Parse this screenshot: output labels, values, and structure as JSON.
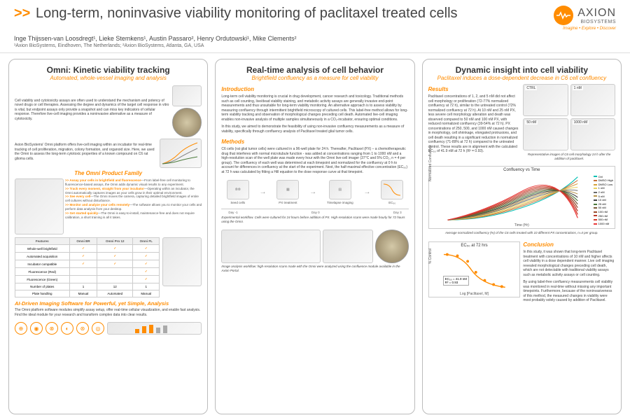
{
  "header": {
    "title": "Long-term, noninvasive viability monitoring of paclitaxel treated cells",
    "authors": "Inge Thijssen-van Loosdregt¹, Lieke Stemkens¹, Austin Passaro², Henry Ordutowski¹, Mike Clements²",
    "affil": "¹Axion BioSystems, Eindhoven, The Netherlands; ²Axion BioSystems, Atlanta, GA, USA",
    "logo_name": "AXION",
    "logo_sub": "BIOSYSTEMS",
    "tagline": "Imagine • Explore • Discover"
  },
  "col1": {
    "title": "Omni: Kinetic viability tracking",
    "sub": "Automated, whole-vessel imaging and analysis",
    "p1": "Cell viability and cytotoxicity assays are often used to understand the mechanism and potency of novel drugs or cell therapies. Assessing the degree and dynamics of the target cell response in vitro is vital, but endpoint assays only provide a snapshot and can miss key indicators of cellular response. Therefore live-cell imaging provides a noninvasive alternative as a measure of cytotoxicity.",
    "p2": "Axion BioSystems' Omni platform offers live-cell imaging within an incubator for real-time tracking of cell proliferation, migration, colony formation, and organoid size. Here, we used the Omni to assess the long-term cytotoxic properties of a known compound on C6 rat glioma cells.",
    "family_h": "The Omni Product Family",
    "features": [
      {
        "h": ">> Assay your cells in brightfield and fluorescence",
        "t": "—From label-free cell monitoring to fluorescence-based assays, the Omni adds dynamic visual results to any experiment."
      },
      {
        "h": ">> Track every moment, straight from your incubator",
        "t": "—Operating within an incubator, the Omni automatically captures images as your cells grow in their optimal environment."
      },
      {
        "h": ">> See every cell",
        "t": "—The Omni moves the camera, capturing detailed brightfield images of entire cell cultures without disturbance."
      },
      {
        "h": ">> Monitor and analyze your cells remotely",
        "t": "—The software allows you to monitor your cells and perform data analysis from your desktop."
      },
      {
        "h": ">> Get started quickly",
        "t": "—The Omni is easy-to-install, maintenance-free and does not require calibration, a short training is all it takes."
      }
    ],
    "table": {
      "cols": [
        "Features",
        "Omni BR",
        "Omni Pro 12",
        "Omni FL"
      ],
      "rows": [
        [
          "Whole-well brightfield",
          "✓",
          "✓",
          "✓"
        ],
        [
          "Automated acquisition",
          "✓",
          "✓",
          "✓"
        ],
        [
          "Incubator compatible",
          "✓",
          "✓",
          "✓"
        ],
        [
          "Fluorescence (Red)",
          "",
          "",
          "✓"
        ],
        [
          "Fluorescence (Green)",
          "",
          "",
          "✓"
        ],
        [
          "Number of plates",
          "1",
          "12",
          "1"
        ],
        [
          "Plate handling",
          "Manual",
          "Automated",
          "Manual"
        ]
      ]
    },
    "ai_title": "AI-Driven Imaging Software for Powerful, yet Simple, Analysis",
    "ai_text": "The Omni platform software modules simplify assay setup, offer real-time cellular visualization, and enable fast analysis. Find the ideal module for your research and transform complex data into clear results."
  },
  "col2": {
    "title": "Real-time analysis of cell behavior",
    "sub": "Brightfield confluency as a measure for cell viability",
    "intro_h": "Introduction",
    "intro1": "Long-term cell viability monitoring is crucial in drug development, cancer research and toxicology. Traditional methods such as cell counting, live/dead viability staining, and metabolic activity assays are generally invasive end-point measurements and thus unsuitable for long-term viability monitoring. An alternative approach is to assess viability by measuring confluency through intermittent brightfield microscopy of cultured cells. This label-free method allows for long-term viability tracking and observation of morphological changes preceding cell death. Automated live-cell imaging enables non-invasive analysis of multiple samples simultaneously in a CO₂-incubator, ensuring optimal conditions.",
    "intro2": "In this study, we aimed to demonstrate the feasibility of using non-invasive confluency measurements as a measure of viability, specifically through confluency analysis of Paclitaxel treated glial tumor cells.",
    "methods_h": "Methods",
    "methods": "C6 cells (rat glial tumor cells) were cultured in a 96-well plate for 24 h. Thereafter, Paclitaxel (PX) – a chemotherapeutic drug that interferes with normal microtubule function - was added at concentrations ranging from 1 to 1000 nM and a high-resolution scan of the well plate was made every hour with the Omni live-cell imager (37°C and 5% CO₂, n = 4 per group). The confluency of each well was determined at each timepoint and normalized for the confluency at 0 h to account for differences in confluency at the start of the experiment. Next, the half-maximal effective concentration (EC₅₀) at 72 h was calculated by fitting a Hill equation to the dose response curve at that timepoint.",
    "wf": {
      "s1": "Seed cells",
      "s2": "PX treatment",
      "s3": "Timelapse imaging",
      "s4": "EC₅₀"
    },
    "tl": {
      "d0": "Day -1",
      "d1": "Day 0",
      "d3": "Day 3"
    },
    "caption1": "Experimental workflow. Cells were cultured for 24 hours before addition of PX. High-resolution scans were made hourly for 72 hours using the Omni.",
    "caption2": "Image analysis workflow: high-resolution scans made with the Omni were analyzed using the confluence module available in the Axion Portal."
  },
  "col3": {
    "title": "Dynamic insight into cell viability",
    "sub": "Paclitaxel induces a dose-dependent decrease in C6 cell confluency",
    "results_h": "Results",
    "results": "Paclitaxel concentrations of 1, 2, and 5 nM did not affect cell morphology or proliferation (72-77% normalized confluency at 72 h), similar to the untreated control (72% normalized confluency at 72 h). At 10 nM and 25 nM PX, less severe cell morphology alteration and death was observed compared to 50 nM and 100 nM PX, with reduced normalized confluency (39-54% at 72 h). PX concentrations of 250, 500, and 1000 nM caused changes in morphology, cell shrinkage, elongated protrusions, and cell death resulting in a significant reduction in normalized confluency (71-89% at 72 h) compared to the untreated control. These results are in alignment with the calculated EC₅₀ of 41.9 nM at 72 h (R² = 0.93).",
    "img_labels": {
      "ctrl": "CTRL",
      "c1": "1 nM",
      "c50": "50 nM",
      "c1000": "1000 nM"
    },
    "img_caption": "Representative images of C6 cell morphology 24 h after the addition of paclitaxel.",
    "chart1": {
      "title": "Confluency vs Time",
      "ylabel": "Normalized Confluence",
      "xlabel": "Time (Hr)",
      "series": [
        {
          "label": "Ctrl",
          "color": "#00bfb3"
        },
        {
          "label": "DMSO High",
          "color": "#c4703a"
        },
        {
          "label": "DMSO Low",
          "color": "#d4a03a"
        },
        {
          "label": "1 nM",
          "color": "#e8d060"
        },
        {
          "label": "2 nM",
          "color": "#6b6b6b"
        },
        {
          "label": "5 nM",
          "color": "#b8954a"
        },
        {
          "label": "10 nM",
          "color": "#444444"
        },
        {
          "label": "25 nM",
          "color": "#4a7a3a"
        },
        {
          "label": "50 nM",
          "color": "#7a5a3a"
        },
        {
          "label": "100 nM",
          "color": "#9a4a2a"
        },
        {
          "label": "250 nM",
          "color": "#b83a2a"
        },
        {
          "label": "500 nM",
          "color": "#d43a2a"
        },
        {
          "label": "1000 nM",
          "color": "#e83a3a"
        }
      ]
    },
    "chart1_caption": "Average normalized confluency (%) of the C6 cells treated with 10 different PX concentrations, n=4 per group.",
    "chart2": {
      "title": "EC₅₀ at 72 hrs",
      "ylabel": "% Control",
      "xlabel": "Log [Paclitaxel, M]",
      "ec50": "EC₅₀ = 41.9 nM",
      "r2": "R² = 0.93"
    },
    "concl_h": "Conclusion",
    "concl1": "In this study, it was shown that long-term Paclitaxel treatment with concentrations of 10 nM and higher affects cell viability in a dose dependent manner. Live cell imaging revealed morphological changes preceding cell death, which are not detectable with traditional viability assays such as metabolic activity assays or cell counting.",
    "concl2": "By using label-free confluency measurements cell viability was monitored in real-time without missing any important timepoints. Furthermore, because of the noninvasiveness of this method, the measured changes in viability were most probably solely caused by addition of Paclitaxel."
  }
}
